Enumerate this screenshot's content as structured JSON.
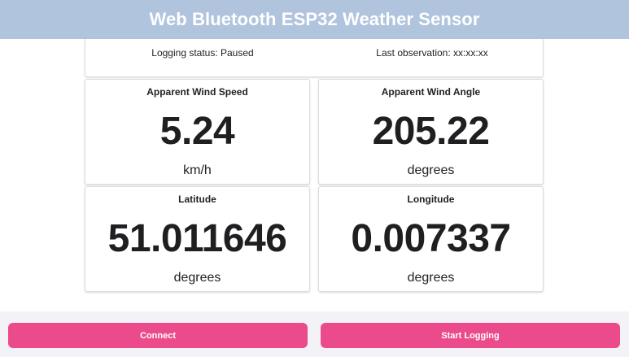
{
  "header": {
    "title": "Web Bluetooth ESP32 Weather Sensor"
  },
  "status": {
    "logging": "Logging status: Paused",
    "last_observation": "Last observation: xx:xx:xx"
  },
  "cards": [
    {
      "label": "Apparent Wind Speed",
      "value": "5.24",
      "unit": "km/h"
    },
    {
      "label": "Apparent Wind Angle",
      "value": "205.22",
      "unit": "degrees"
    },
    {
      "label": "Latitude",
      "value": "51.011646",
      "unit": "degrees"
    },
    {
      "label": "Longitude",
      "value": "0.007337",
      "unit": "degrees"
    }
  ],
  "buttons": {
    "connect": "Connect",
    "start_logging": "Start Logging"
  },
  "colors": {
    "header_bg": "#b0c4de",
    "button_bg": "#ec4b8b",
    "footer_bg": "#f2f2f7"
  }
}
